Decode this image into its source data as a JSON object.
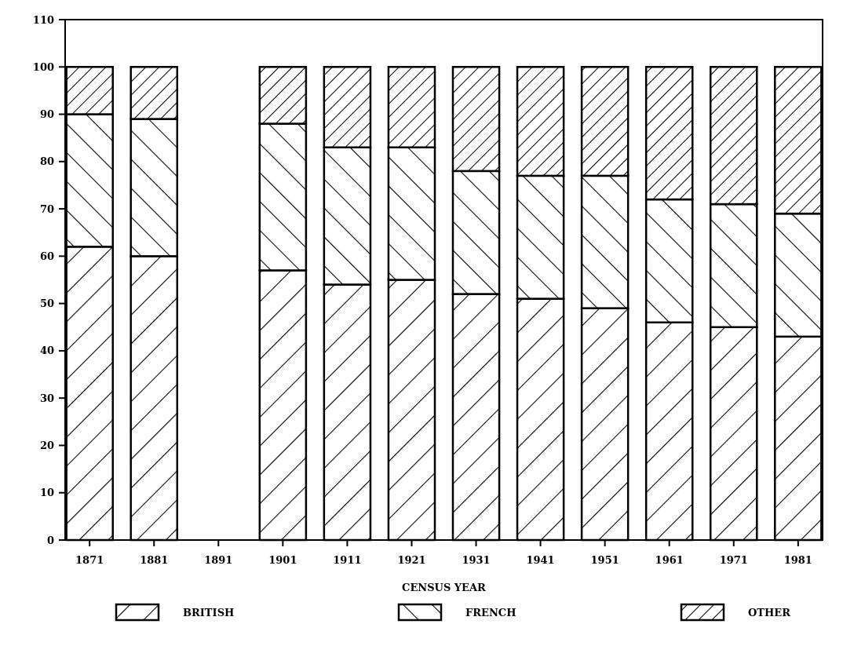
{
  "chart_data": {
    "type": "bar",
    "stacked": true,
    "xlabel": "CENSUS YEAR",
    "categories": [
      "1871",
      "1881",
      "1891",
      "1901",
      "1911",
      "1921",
      "1931",
      "1941",
      "1951",
      "1961",
      "1971",
      "1981"
    ],
    "series": [
      {
        "name": "BRITISH",
        "color": "#000000",
        "values": [
          62,
          60,
          null,
          57,
          54,
          55,
          52,
          51,
          49,
          46,
          45,
          43
        ]
      },
      {
        "name": "FRENCH",
        "color": "#000000",
        "values": [
          28,
          29,
          null,
          31,
          29,
          28,
          26,
          26,
          28,
          26,
          26,
          26
        ]
      },
      {
        "name": "OTHER",
        "color": "#000000",
        "values": [
          10,
          11,
          null,
          12,
          17,
          17,
          22,
          23,
          23,
          28,
          29,
          31
        ]
      }
    ],
    "ylim": [
      0,
      110
    ],
    "yticks": [
      0,
      10,
      20,
      30,
      40,
      50,
      60,
      70,
      80,
      90,
      100,
      110
    ],
    "grid": false,
    "legend": "bottom"
  }
}
